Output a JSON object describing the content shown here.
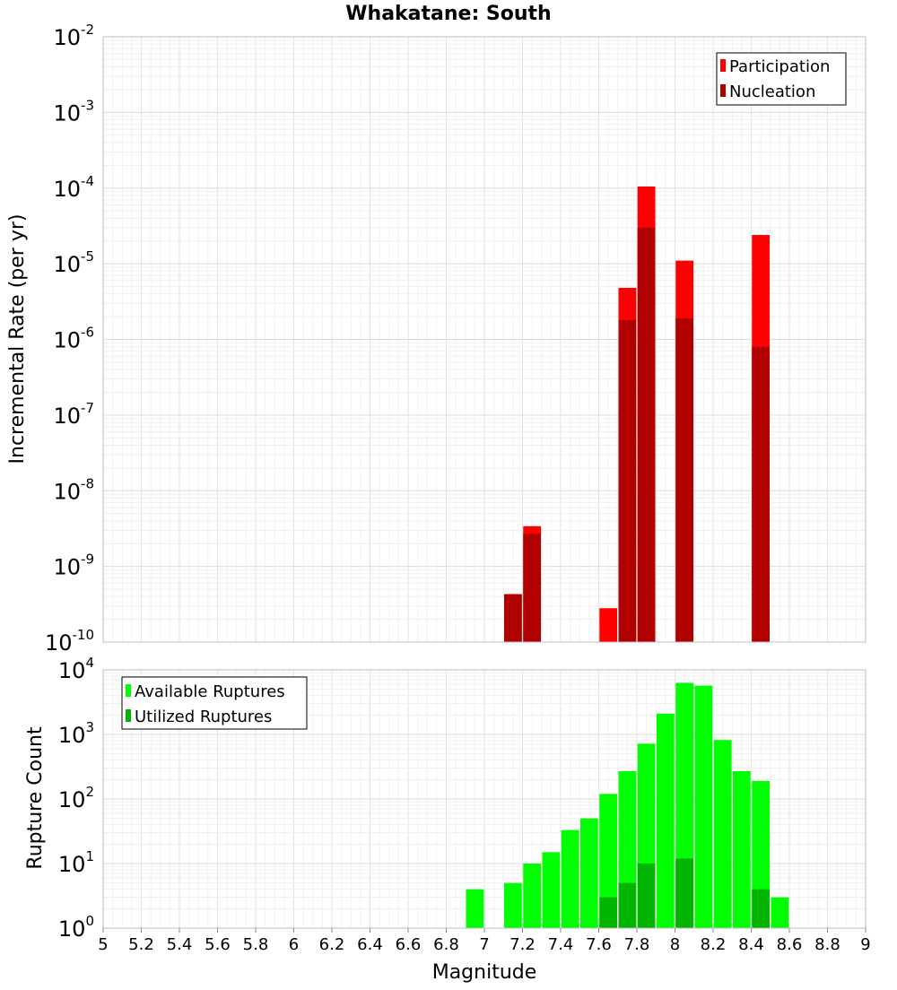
{
  "chart_data": [
    {
      "type": "bar",
      "title": "Whakatane: South",
      "xlabel": "Magnitude",
      "ylabel": "Incremental Rate (per yr)",
      "xlim": [
        5,
        9
      ],
      "yscale": "log",
      "ylim": [
        1e-10,
        0.01
      ],
      "y_tick_exponents": [
        "-10",
        "-9",
        "-8",
        "-7",
        "-6",
        "-5",
        "-4",
        "-3",
        "-2"
      ],
      "grid": true,
      "legend_position": "top-right",
      "legend": [
        "Participation",
        "Nucleation"
      ],
      "colors": {
        "Participation": "#ff0000",
        "Nucleation": "#b00000"
      },
      "x": [
        7.15,
        7.25,
        7.65,
        7.75,
        7.85,
        8.05,
        8.45
      ],
      "series": [
        {
          "name": "Participation",
          "values": [
            4.3e-10,
            3.4e-09,
            2.8e-10,
            4.8e-06,
            0.000105,
            1.1e-05,
            2.4e-05
          ]
        },
        {
          "name": "Nucleation",
          "values": [
            4.3e-10,
            2.7e-09,
            null,
            1.8e-06,
            3e-05,
            1.9e-06,
            8e-07
          ]
        }
      ]
    },
    {
      "type": "bar",
      "xlabel": "Magnitude",
      "ylabel": "Rupture Count",
      "xlim": [
        5,
        9
      ],
      "x_ticks": [
        "5",
        "5.2",
        "5.4",
        "5.6",
        "5.8",
        "6",
        "6.2",
        "6.4",
        "6.6",
        "6.8",
        "7",
        "7.2",
        "7.4",
        "7.6",
        "7.8",
        "8",
        "8.2",
        "8.4",
        "8.6",
        "8.8",
        "9"
      ],
      "yscale": "log",
      "ylim": [
        1,
        10000
      ],
      "y_tick_exponents": [
        "0",
        "1",
        "2",
        "3",
        "4"
      ],
      "grid": true,
      "legend_position": "top-left",
      "legend": [
        "Available Ruptures",
        "Utilized Ruptures"
      ],
      "colors": {
        "Available Ruptures": "#00ff00",
        "Utilized Ruptures": "#00b400"
      },
      "x": [
        6.95,
        7.15,
        7.25,
        7.35,
        7.45,
        7.55,
        7.65,
        7.75,
        7.85,
        7.95,
        8.05,
        8.15,
        8.25,
        8.35,
        8.45,
        8.55
      ],
      "series": [
        {
          "name": "Available Ruptures",
          "values": [
            4,
            5,
            10,
            15,
            33,
            50,
            120,
            270,
            720,
            2100,
            6300,
            5700,
            820,
            270,
            190,
            3
          ]
        },
        {
          "name": "Utilized Ruptures",
          "values": [
            null,
            1,
            1,
            null,
            1,
            null,
            3,
            5,
            10,
            1,
            12,
            1,
            null,
            null,
            4,
            null
          ]
        }
      ]
    }
  ]
}
